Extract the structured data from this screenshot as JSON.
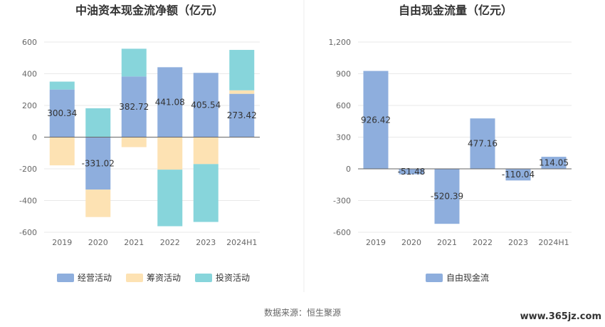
{
  "chart_data": [
    {
      "type": "bar",
      "stacked": true,
      "title": "中油资本现金流净额（亿元）",
      "categories": [
        "2019",
        "2020",
        "2021",
        "2022",
        "2023",
        "2024H1"
      ],
      "ylim": [
        -600,
        600
      ],
      "yticks": [
        "600",
        "400",
        "200",
        "0",
        "-200",
        "-400",
        "-600"
      ],
      "legend_position": "bottom",
      "series": [
        {
          "name": "经营活动",
          "color": "#8eaedd",
          "values": [
            300.34,
            -331.02,
            382.72,
            441.08,
            405.54,
            273.42
          ],
          "labels": [
            "300.34",
            "-331.02",
            "382.72",
            "441.08",
            "405.54",
            "273.42"
          ]
        },
        {
          "name": "筹资活动",
          "color": "#fde2b3",
          "values": [
            -178,
            -173,
            -63,
            -205,
            -170,
            22
          ]
        },
        {
          "name": "投资活动",
          "color": "#87d5db",
          "values": [
            50,
            182,
            175,
            -357,
            -365,
            255
          ]
        }
      ]
    },
    {
      "type": "bar",
      "title": "自由现金流量（亿元）",
      "categories": [
        "2019",
        "2020",
        "2021",
        "2022",
        "2023",
        "2024H1"
      ],
      "ylim": [
        -600,
        1200
      ],
      "yticks": [
        "1,200",
        "900",
        "600",
        "300",
        "0",
        "-300",
        "-600"
      ],
      "legend_position": "bottom",
      "series": [
        {
          "name": "自由现金流",
          "color": "#8eaedd",
          "values": [
            926.42,
            -51.48,
            -520.39,
            477.16,
            -110.04,
            114.05
          ],
          "labels": [
            "926.42",
            "-51.48",
            "-520.39",
            "477.16",
            "-110.04",
            "114.05"
          ]
        }
      ]
    }
  ],
  "footer": {
    "source": "数据来源：恒生聚源",
    "watermark": "www.365jz.com"
  }
}
